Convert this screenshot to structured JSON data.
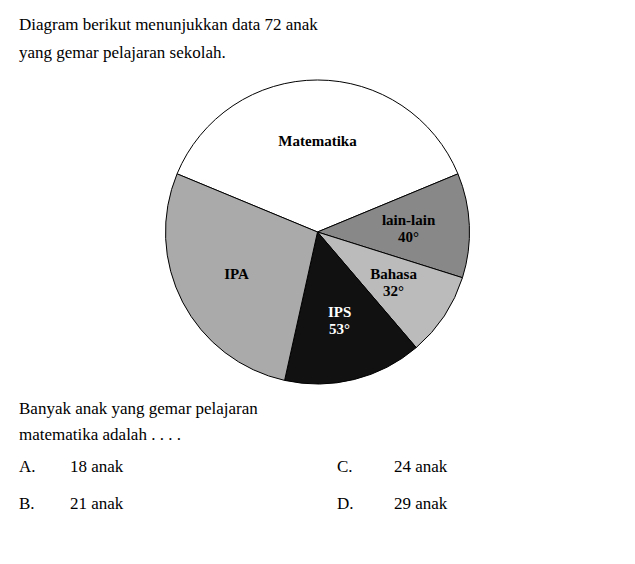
{
  "chart_data": {
    "type": "pie",
    "title": "Diagram berikut menunjukkan data 72 anak",
    "subtitle": "yang gemar pelajaran sekolah.",
    "categories": [
      "Matematika",
      "lain-lain",
      "Bahasa",
      "IPS",
      "IPA"
    ],
    "values": [
      135,
      40,
      32,
      53,
      100
    ],
    "value_labels": [
      null,
      "40°",
      "32°",
      "53°",
      null
    ],
    "colors": [
      "#ffffff",
      "#888888",
      "#bbbbbb",
      "#111111",
      "#aaaaaa"
    ],
    "data_labels": true,
    "annotations": [
      "Banyak anak yang gemar pelajaran",
      "matematika adalah . . . .",
      [
        "A.",
        "18 anak",
        "C.",
        "24 anak"
      ],
      [
        "B.",
        "21 anak",
        "D.",
        "29 anak"
      ]
    ]
  }
}
